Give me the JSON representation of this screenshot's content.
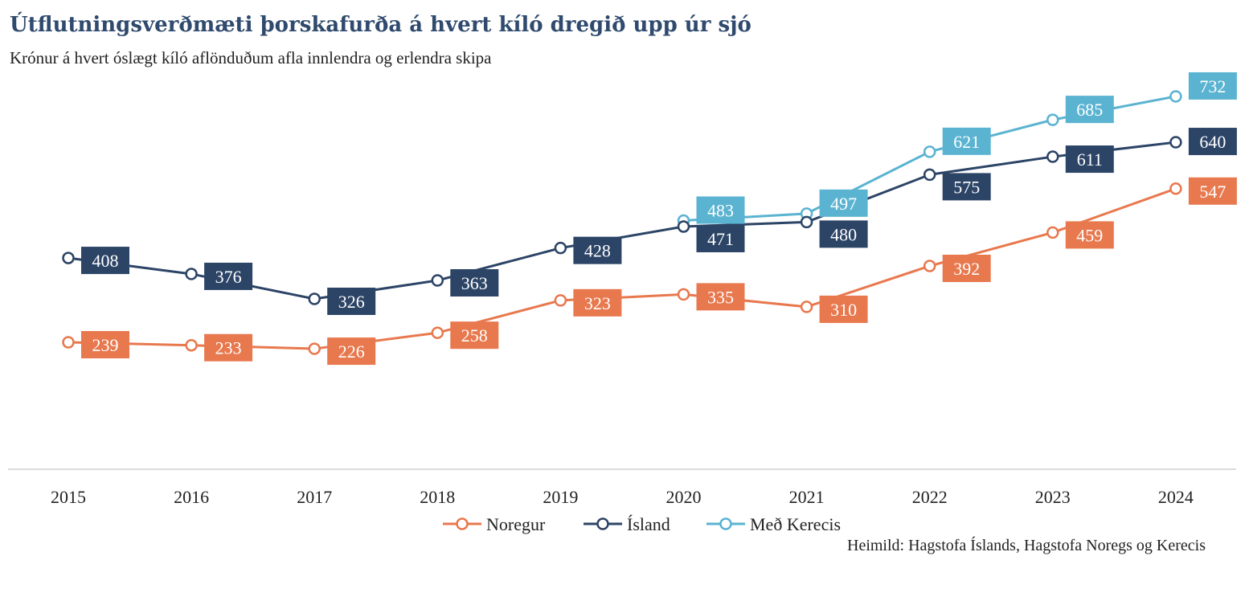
{
  "chart_data": {
    "type": "line",
    "title": "Útflutningsverðmæti þorskafurða á hvert kíló dregið upp úr sjó",
    "subtitle": "Krónur á hvert óslægt kíló aflönduðum afla innlendra og erlendra skipa",
    "x": [
      "2015",
      "2016",
      "2017",
      "2018",
      "2019",
      "2020",
      "2021",
      "2022",
      "2023",
      "2024"
    ],
    "series": [
      {
        "name": "Noregur",
        "color": "#e8784e",
        "values": [
          239,
          233,
          226,
          258,
          323,
          335,
          310,
          392,
          459,
          547
        ]
      },
      {
        "name": "Ísland",
        "color": "#2c4466",
        "values": [
          408,
          376,
          326,
          363,
          428,
          471,
          480,
          575,
          611,
          640
        ]
      },
      {
        "name": "Með Kerecis",
        "color": "#5ab3d1",
        "values": [
          null,
          null,
          null,
          null,
          null,
          483,
          497,
          621,
          685,
          732
        ]
      }
    ],
    "data_labels": true,
    "grid": false,
    "legend_position": "bottom",
    "source": "Heimild: Hagstofa Íslands, Hagstofa Noregs og Kerecis"
  }
}
